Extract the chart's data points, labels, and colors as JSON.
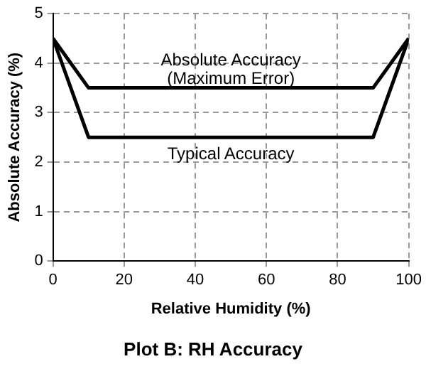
{
  "chart_data": {
    "type": "line",
    "title": "Plot B: RH Accuracy",
    "xlabel": "Relative Humidity (%)",
    "ylabel": "Absolute Accuracy (%)",
    "xlim": [
      0,
      100
    ],
    "xticks": [
      0,
      20,
      40,
      60,
      80,
      100
    ],
    "ylim": [
      0,
      5
    ],
    "yticks": [
      0,
      1,
      2,
      3,
      4,
      5
    ],
    "grid": true,
    "legend": false,
    "marker": "none",
    "line_style": "solid",
    "series": [
      {
        "name": "Absolute Accuracy (Maximum Error)",
        "color": "#000000",
        "x": [
          0,
          10,
          90,
          100
        ],
        "values": [
          4.5,
          3.5,
          3.5,
          4.5
        ]
      },
      {
        "name": "Typical Accuracy",
        "color": "#000000",
        "x": [
          0,
          10,
          90,
          100
        ],
        "values": [
          4.5,
          2.5,
          2.5,
          4.5
        ]
      }
    ]
  }
}
